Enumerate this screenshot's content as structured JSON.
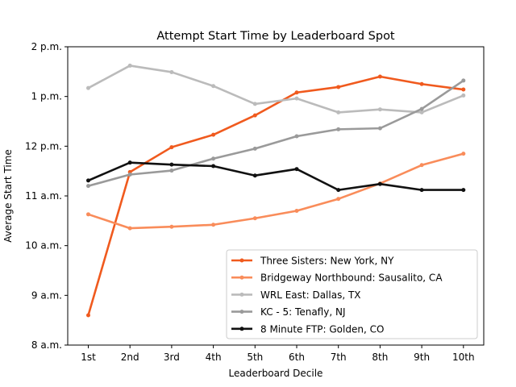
{
  "chart_data": {
    "type": "line",
    "title": "Attempt Start Time by Leaderboard Spot",
    "xlabel": "Leaderboard Decile",
    "ylabel": "Average Start Time",
    "categories": [
      "1st",
      "2nd",
      "3rd",
      "4th",
      "5th",
      "6th",
      "7th",
      "8th",
      "9th",
      "10th"
    ],
    "ylim": [
      8,
      14
    ],
    "yticks": [
      {
        "value": 8,
        "label": "8 a.m."
      },
      {
        "value": 9,
        "label": "9 a.m."
      },
      {
        "value": 10,
        "label": "10 a.m."
      },
      {
        "value": 11,
        "label": "11 a.m."
      },
      {
        "value": 12,
        "label": "12 p.m."
      },
      {
        "value": 13,
        "label": "1 p.m."
      },
      {
        "value": 14,
        "label": "2 p.m."
      }
    ],
    "grid": false,
    "legend_position": "lower-right",
    "series": [
      {
        "name": "Three Sisters: New York, NY",
        "color": "#f05a1e",
        "values": [
          8.6,
          11.48,
          11.98,
          12.23,
          12.62,
          13.08,
          13.19,
          13.4,
          13.25,
          13.14
        ]
      },
      {
        "name": "Bridgeway Northbound: Sausalito, CA",
        "color": "#f98c5a",
        "values": [
          10.63,
          10.35,
          10.38,
          10.42,
          10.55,
          10.7,
          10.94,
          11.25,
          11.62,
          11.85
        ]
      },
      {
        "name": "WRL East: Dallas, TX",
        "color": "#bbbbbb",
        "values": [
          13.17,
          13.62,
          13.49,
          13.21,
          12.85,
          12.96,
          12.68,
          12.74,
          12.68,
          13.02
        ]
      },
      {
        "name": "KC - 5: Tenafly, NJ",
        "color": "#9a9a9a",
        "values": [
          11.2,
          11.43,
          11.51,
          11.75,
          11.95,
          12.2,
          12.34,
          12.36,
          12.75,
          13.32
        ]
      },
      {
        "name": "8 Minute FTP: Golden, CO",
        "color": "#111111",
        "values": [
          11.31,
          11.67,
          11.63,
          11.6,
          11.41,
          11.54,
          11.12,
          11.24,
          11.12,
          11.12
        ]
      }
    ]
  }
}
